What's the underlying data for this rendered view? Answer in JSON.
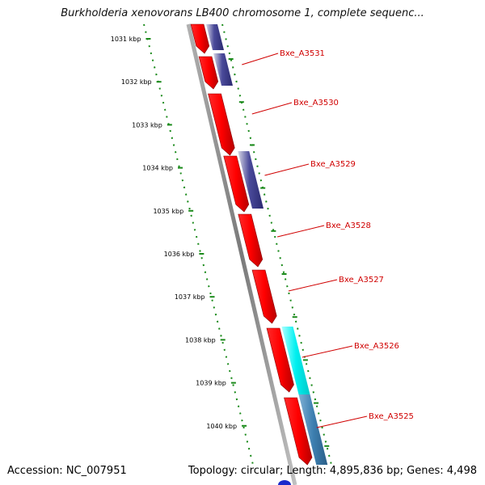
{
  "title": "Burkholderia xenovorans LB400 chromosome 1, complete sequenc...",
  "footer": {
    "accession": "Accession: NC_007951",
    "summary": "Topology: circular; Length: 4,895,836 bp; Genes: 4,498"
  },
  "scale": {
    "unit": "kbp",
    "ticks": [
      "1031 kbp",
      "1032 kbp",
      "1033 kbp",
      "1034 kbp",
      "1035 kbp",
      "1036 kbp",
      "1037 kbp",
      "1038 kbp",
      "1039 kbp",
      "1040 kbp"
    ]
  },
  "genes": [
    "Bxe_A3531",
    "Bxe_A3530",
    "Bxe_A3529",
    "Bxe_A3528",
    "Bxe_A3527",
    "Bxe_A3526",
    "Bxe_A3525"
  ],
  "colors": {
    "cds": "#ff0000",
    "backbone": "#8c8c8c",
    "tick": "#1a8a1a",
    "label": "#d00000",
    "blast_dark": "#3a3a90",
    "blast_cyan": "#00e5e5",
    "blast_steel": "#3d7fb0"
  }
}
